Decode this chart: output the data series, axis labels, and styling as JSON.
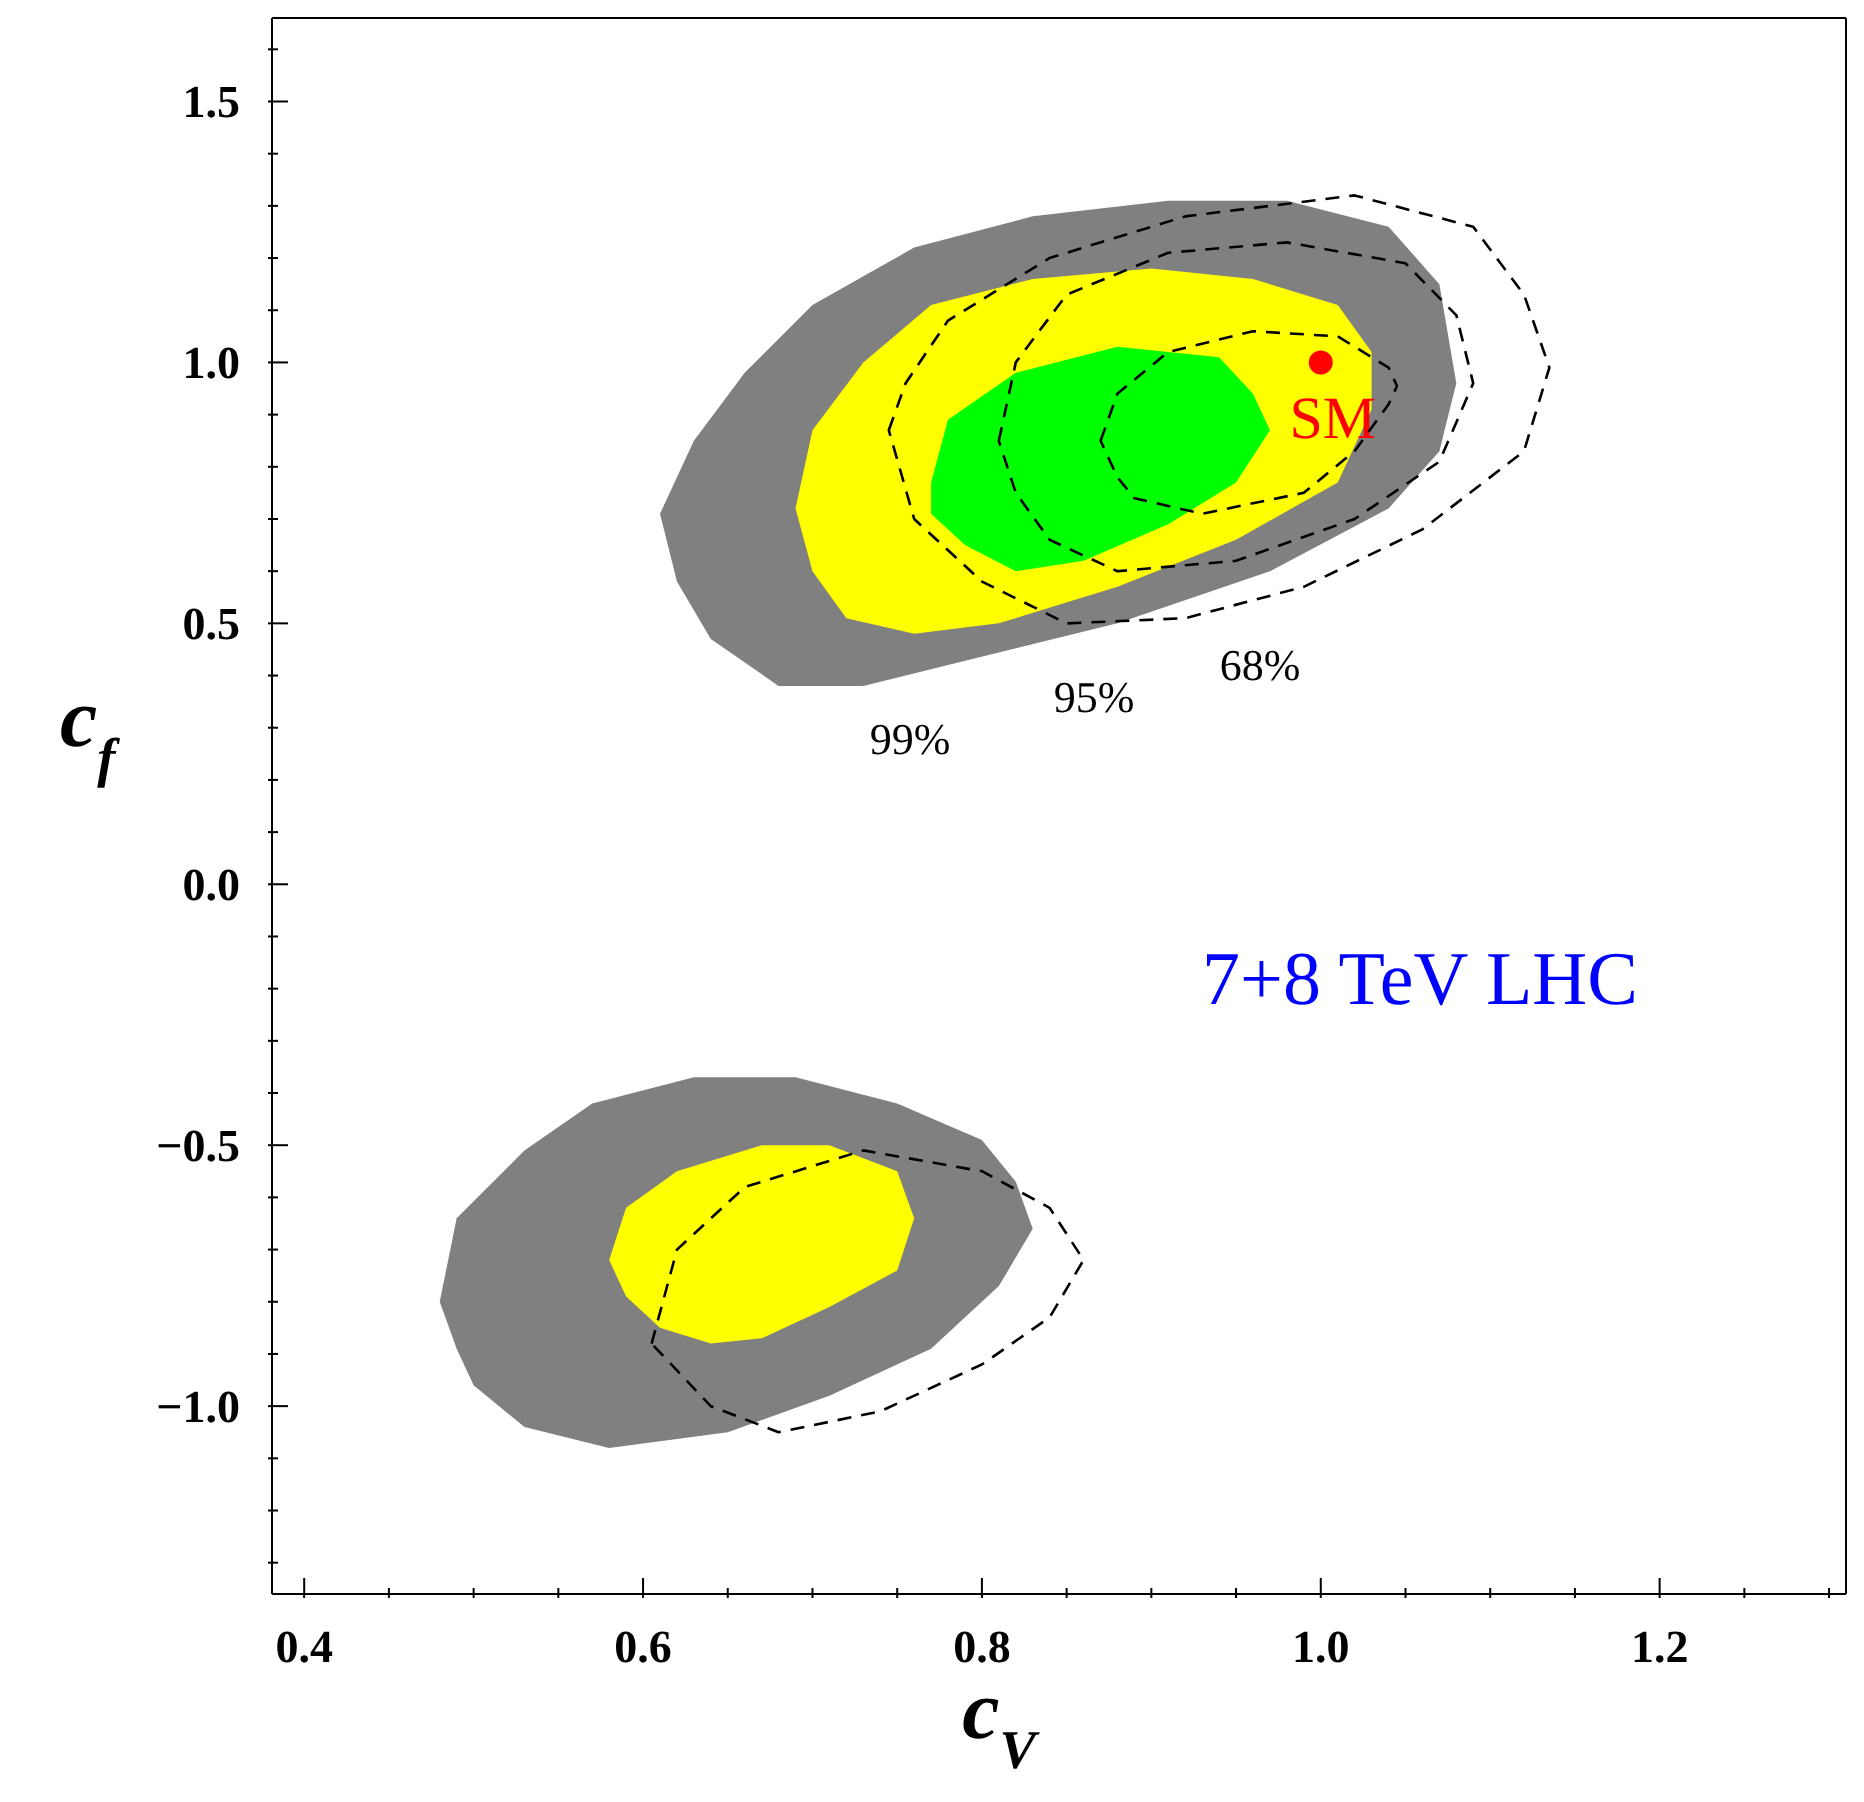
{
  "chart_data": {
    "type": "area",
    "xlabel": "c$_{V}$",
    "ylabel": "c$_{f}$",
    "xlim": [
      0.381,
      1.31
    ],
    "ylim": [
      -1.36,
      1.66
    ],
    "xticks": [
      {
        "value": 0.4,
        "label": "0.4"
      },
      {
        "value": 0.45,
        "label": null
      },
      {
        "value": 0.5,
        "label": null
      },
      {
        "value": 0.55,
        "label": null
      },
      {
        "value": 0.6,
        "label": "0.6"
      },
      {
        "value": 0.65,
        "label": null
      },
      {
        "value": 0.7,
        "label": null
      },
      {
        "value": 0.75,
        "label": null
      },
      {
        "value": 0.8,
        "label": "0.8"
      },
      {
        "value": 0.85,
        "label": null
      },
      {
        "value": 0.9,
        "label": null
      },
      {
        "value": 0.95,
        "label": null
      },
      {
        "value": 1.0,
        "label": "1.0"
      },
      {
        "value": 1.05,
        "label": null
      },
      {
        "value": 1.1,
        "label": null
      },
      {
        "value": 1.15,
        "label": null
      },
      {
        "value": 1.2,
        "label": "1.2"
      },
      {
        "value": 1.25,
        "label": null
      },
      {
        "value": 1.3,
        "label": null
      }
    ],
    "yticks": [
      {
        "value": -1.3,
        "label": null
      },
      {
        "value": -1.2,
        "label": null
      },
      {
        "value": -1.1,
        "label": null
      },
      {
        "value": -1.0,
        "label": "−1.0"
      },
      {
        "value": -0.9,
        "label": null
      },
      {
        "value": -0.8,
        "label": null
      },
      {
        "value": -0.7,
        "label": null
      },
      {
        "value": -0.6,
        "label": null
      },
      {
        "value": -0.5,
        "label": "−0.5"
      },
      {
        "value": -0.4,
        "label": null
      },
      {
        "value": -0.3,
        "label": null
      },
      {
        "value": -0.2,
        "label": null
      },
      {
        "value": -0.1,
        "label": null
      },
      {
        "value": 0.0,
        "label": "0.0"
      },
      {
        "value": 0.1,
        "label": null
      },
      {
        "value": 0.2,
        "label": null
      },
      {
        "value": 0.3,
        "label": null
      },
      {
        "value": 0.4,
        "label": null
      },
      {
        "value": 0.5,
        "label": "0.5"
      },
      {
        "value": 0.6,
        "label": null
      },
      {
        "value": 0.7,
        "label": null
      },
      {
        "value": 0.8,
        "label": null
      },
      {
        "value": 0.9,
        "label": null
      },
      {
        "value": 1.0,
        "label": "1.0"
      },
      {
        "value": 1.1,
        "label": null
      },
      {
        "value": 1.2,
        "label": null
      },
      {
        "value": 1.3,
        "label": null
      },
      {
        "value": 1.4,
        "label": null
      },
      {
        "value": 1.5,
        "label": "1.5"
      },
      {
        "value": 1.6,
        "label": null
      }
    ],
    "annotations": [
      "99%",
      "95%",
      "68%",
      "7+8 TeV LHC"
    ],
    "series": [
      {
        "color": "#808080",
        "x": [
          0.61,
          0.63,
          0.66,
          0.7,
          0.76,
          0.83,
          0.91,
          0.98,
          1.04,
          1.07,
          1.08,
          1.07,
          1.04,
          0.97,
          0.88,
          0.78,
          0.73,
          0.68,
          0.64,
          0.62
        ],
        "values": [
          0.71,
          0.85,
          0.98,
          1.11,
          1.22,
          1.28,
          1.31,
          1.31,
          1.26,
          1.15,
          0.96,
          0.83,
          0.72,
          0.6,
          0.5,
          0.42,
          0.38,
          0.38,
          0.47,
          0.58
        ]
      },
      {
        "color": "#808080",
        "x": [
          0.48,
          0.49,
          0.53,
          0.57,
          0.63,
          0.69,
          0.75,
          0.8,
          0.82,
          0.83,
          0.81,
          0.77,
          0.71,
          0.65,
          0.58,
          0.53,
          0.5,
          0.49
        ],
        "values": [
          -0.8,
          -0.64,
          -0.51,
          -0.42,
          -0.37,
          -0.37,
          -0.42,
          -0.49,
          -0.57,
          -0.66,
          -0.77,
          -0.89,
          -0.98,
          -1.05,
          -1.08,
          -1.04,
          -0.96,
          -0.89
        ]
      },
      {
        "color": "#ffff00",
        "x": [
          0.69,
          0.7,
          0.73,
          0.77,
          0.83,
          0.9,
          0.96,
          1.01,
          1.03,
          1.03,
          1.01,
          0.95,
          0.88,
          0.81,
          0.76,
          0.72,
          0.7
        ],
        "values": [
          0.72,
          0.87,
          1.0,
          1.11,
          1.16,
          1.18,
          1.16,
          1.11,
          1.02,
          0.91,
          0.77,
          0.66,
          0.57,
          0.5,
          0.48,
          0.51,
          0.6
        ]
      },
      {
        "color": "#ffff00",
        "x": [
          0.58,
          0.59,
          0.62,
          0.67,
          0.71,
          0.75,
          0.76,
          0.75,
          0.71,
          0.67,
          0.64,
          0.61,
          0.59
        ],
        "values": [
          -0.72,
          -0.62,
          -0.55,
          -0.5,
          -0.5,
          -0.55,
          -0.64,
          -0.74,
          -0.81,
          -0.87,
          -0.88,
          -0.85,
          -0.79
        ]
      },
      {
        "color": "#00ff00",
        "x": [
          0.77,
          0.78,
          0.82,
          0.88,
          0.94,
          0.96,
          0.97,
          0.95,
          0.91,
          0.86,
          0.82,
          0.79,
          0.77
        ],
        "values": [
          0.77,
          0.89,
          0.98,
          1.03,
          1.01,
          0.94,
          0.87,
          0.77,
          0.69,
          0.62,
          0.6,
          0.65,
          0.71
        ]
      },
      {
        "type": "scatter",
        "name": "SM",
        "color": "#ff0000",
        "marker": "circle",
        "x": [
          1.0
        ],
        "values": [
          1.0
        ]
      }
    ]
  }
}
